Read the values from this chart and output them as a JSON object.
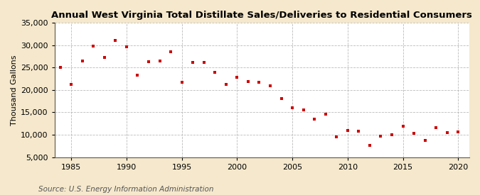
{
  "title": "Annual West Virginia Total Distillate Sales/Deliveries to Residential Consumers",
  "ylabel": "Thousand Gallons",
  "source": "Source: U.S. Energy Information Administration",
  "background_color": "#f5e8cc",
  "plot_bg_color": "#ffffff",
  "marker_color": "#cc0000",
  "marker": "s",
  "markersize": 3.5,
  "xlim": [
    1983.5,
    2021
  ],
  "ylim": [
    5000,
    35000
  ],
  "yticks": [
    5000,
    10000,
    15000,
    20000,
    25000,
    30000,
    35000
  ],
  "xticks": [
    1985,
    1990,
    1995,
    2000,
    2005,
    2010,
    2015,
    2020
  ],
  "years": [
    1984,
    1985,
    1986,
    1987,
    1988,
    1989,
    1990,
    1991,
    1992,
    1993,
    1994,
    1995,
    1996,
    1997,
    1998,
    1999,
    2000,
    2001,
    2002,
    2003,
    2004,
    2005,
    2006,
    2007,
    2008,
    2009,
    2010,
    2011,
    2012,
    2013,
    2014,
    2015,
    2016,
    2017,
    2018,
    2019,
    2020
  ],
  "values": [
    25000,
    21200,
    26400,
    29700,
    27200,
    31100,
    29600,
    23300,
    26300,
    26400,
    28500,
    21700,
    26100,
    26100,
    24000,
    21200,
    22800,
    21800,
    21700,
    20900,
    18000,
    16000,
    15500,
    13500,
    14600,
    9500,
    10900,
    10800,
    7600,
    9700,
    10000,
    11900,
    10400,
    8700,
    11600,
    10500,
    10600
  ],
  "title_fontsize": 9.5,
  "axis_fontsize": 8,
  "source_fontsize": 7.5,
  "grid_color": "#aaaaaa",
  "grid_linestyle": "--",
  "spine_color": "#555555"
}
